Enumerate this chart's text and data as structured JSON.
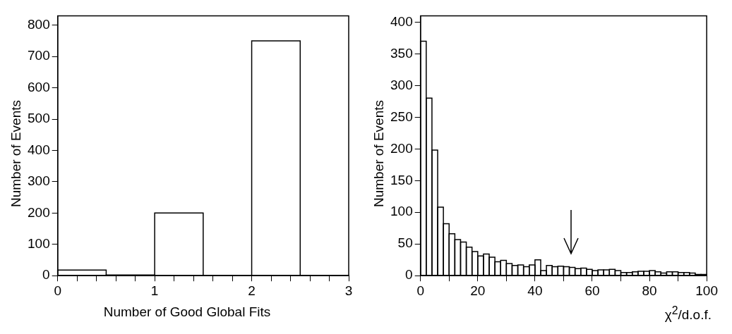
{
  "chart_data": [
    {
      "type": "histogram",
      "xlabel": "Number of Good Global Fits",
      "ylabel": "Number of Events",
      "color": "#000000",
      "grid": false,
      "bins": [
        0,
        0.5,
        1,
        1.5,
        2,
        2.5,
        3
      ],
      "values": [
        18,
        2,
        200,
        0,
        750,
        0
      ],
      "xlim": [
        0,
        3
      ],
      "ylim": [
        0,
        830
      ],
      "xticks": [
        0,
        {
          "value": 0.2,
          "label": null
        },
        {
          "value": 0.4,
          "label": null
        },
        {
          "value": 0.6,
          "label": null
        },
        {
          "value": 0.8,
          "label": null
        },
        1,
        {
          "value": 1.2,
          "label": null
        },
        {
          "value": 1.4,
          "label": null
        },
        {
          "value": 1.6,
          "label": null
        },
        {
          "value": 1.8,
          "label": null
        },
        2,
        {
          "value": 2.2,
          "label": null
        },
        {
          "value": 2.4,
          "label": null
        },
        {
          "value": 2.6,
          "label": null
        },
        {
          "value": 2.8,
          "label": null
        },
        3
      ],
      "yticks": [
        0,
        100,
        200,
        300,
        400,
        500,
        600,
        700,
        800
      ]
    },
    {
      "type": "histogram",
      "xlabel": "χ$^{2}$/d.o.f.",
      "ylabel": "Number of Events",
      "color": "#000000",
      "grid": false,
      "bins": [
        0,
        2,
        4,
        6,
        8,
        10,
        12,
        14,
        16,
        18,
        20,
        22,
        24,
        26,
        28,
        30,
        32,
        34,
        36,
        38,
        40,
        42,
        44,
        46,
        48,
        50,
        52,
        54,
        56,
        58,
        60,
        62,
        64,
        66,
        68,
        70,
        72,
        74,
        76,
        78,
        80,
        82,
        84,
        86,
        88,
        90,
        92,
        94,
        96,
        98,
        100
      ],
      "values": [
        370,
        280,
        198,
        108,
        82,
        66,
        57,
        53,
        45,
        38,
        31,
        34,
        29,
        22,
        24,
        19,
        16,
        17,
        14,
        17,
        25,
        8,
        16,
        14,
        15,
        14,
        13,
        11,
        12,
        10,
        8,
        9,
        9,
        10,
        8,
        5,
        5,
        6,
        7,
        7,
        8,
        6,
        4,
        6,
        6,
        5,
        5,
        4,
        2,
        2
      ],
      "xlim": [
        0,
        100
      ],
      "ylim": [
        0,
        410
      ],
      "xticks": [
        0,
        {
          "value": 10,
          "label": null
        },
        20,
        {
          "value": 30,
          "label": null
        },
        40,
        {
          "value": 50,
          "label": null
        },
        60,
        {
          "value": 70,
          "label": null
        },
        80,
        {
          "value": 90,
          "label": null
        },
        100
      ],
      "yticks": [
        0,
        50,
        100,
        150,
        200,
        250,
        300,
        350,
        400
      ]
    }
  ]
}
